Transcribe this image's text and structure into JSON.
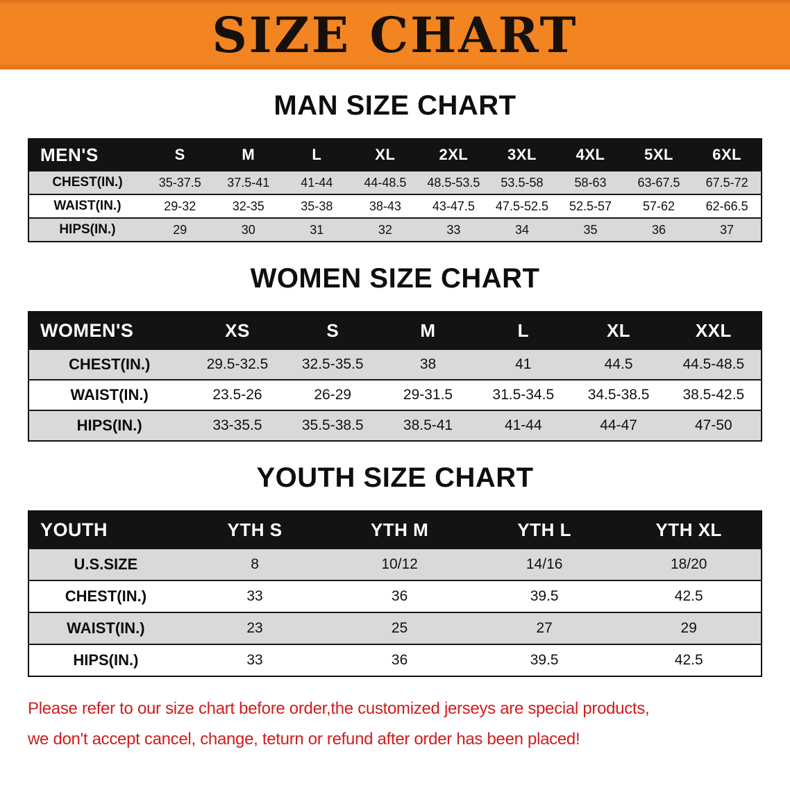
{
  "banner": {
    "title": "SIZE CHART"
  },
  "colors": {
    "banner_bg": "#f28422",
    "banner_text": "#15100a",
    "table_header_bg": "#131313",
    "table_header_text": "#ffffff",
    "row_shade": "#d9d9d9",
    "row_plain": "#ffffff",
    "disclaimer_text": "#cf1d1d"
  },
  "sections": [
    {
      "key": "men",
      "heading": "MAN SIZE CHART",
      "table": {
        "header": [
          "MEN'S",
          "S",
          "M",
          "L",
          "XL",
          "2XL",
          "3XL",
          "4XL",
          "5XL",
          "6XL"
        ],
        "rows": [
          {
            "label": "CHEST(IN.)",
            "values": [
              "35-37.5",
              "37.5-41",
              "41-44",
              "44-48.5",
              "48.5-53.5",
              "53.5-58",
              "58-63",
              "63-67.5",
              "67.5-72"
            ]
          },
          {
            "label": "WAIST(IN.)",
            "values": [
              "29-32",
              "32-35",
              "35-38",
              "38-43",
              "43-47.5",
              "47.5-52.5",
              "52.5-57",
              "57-62",
              "62-66.5"
            ]
          },
          {
            "label": "HIPS(IN.)",
            "values": [
              "29",
              "30",
              "31",
              "32",
              "33",
              "34",
              "35",
              "36",
              "37"
            ]
          }
        ]
      }
    },
    {
      "key": "women",
      "heading": "WOMEN SIZE CHART",
      "table": {
        "header": [
          "WOMEN'S",
          "XS",
          "S",
          "M",
          "L",
          "XL",
          "XXL"
        ],
        "rows": [
          {
            "label": "CHEST(IN.)",
            "values": [
              "29.5-32.5",
              "32.5-35.5",
              "38",
              "41",
              "44.5",
              "44.5-48.5"
            ]
          },
          {
            "label": "WAIST(IN.)",
            "values": [
              "23.5-26",
              "26-29",
              "29-31.5",
              "31.5-34.5",
              "34.5-38.5",
              "38.5-42.5"
            ]
          },
          {
            "label": "HIPS(IN.)",
            "values": [
              "33-35.5",
              "35.5-38.5",
              "38.5-41",
              "41-44",
              "44-47",
              "47-50"
            ]
          }
        ]
      }
    },
    {
      "key": "youth",
      "heading": "YOUTH SIZE CHART",
      "table": {
        "header": [
          "YOUTH",
          "YTH S",
          "YTH M",
          "YTH L",
          "YTH XL"
        ],
        "rows": [
          {
            "label": "U.S.SIZE",
            "values": [
              "8",
              "10/12",
              "14/16",
              "18/20"
            ]
          },
          {
            "label": "CHEST(IN.)",
            "values": [
              "33",
              "36",
              "39.5",
              "42.5"
            ]
          },
          {
            "label": "WAIST(IN.)",
            "values": [
              "23",
              "25",
              "27",
              "29"
            ]
          },
          {
            "label": "HIPS(IN.)",
            "values": [
              "33",
              "36",
              "39.5",
              "42.5"
            ]
          }
        ]
      }
    }
  ],
  "disclaimer": {
    "line1": "Please refer to our size chart before order,the customized jerseys are special products,",
    "line2": "we don't accept cancel, change, teturn or refund after order has been placed!"
  }
}
